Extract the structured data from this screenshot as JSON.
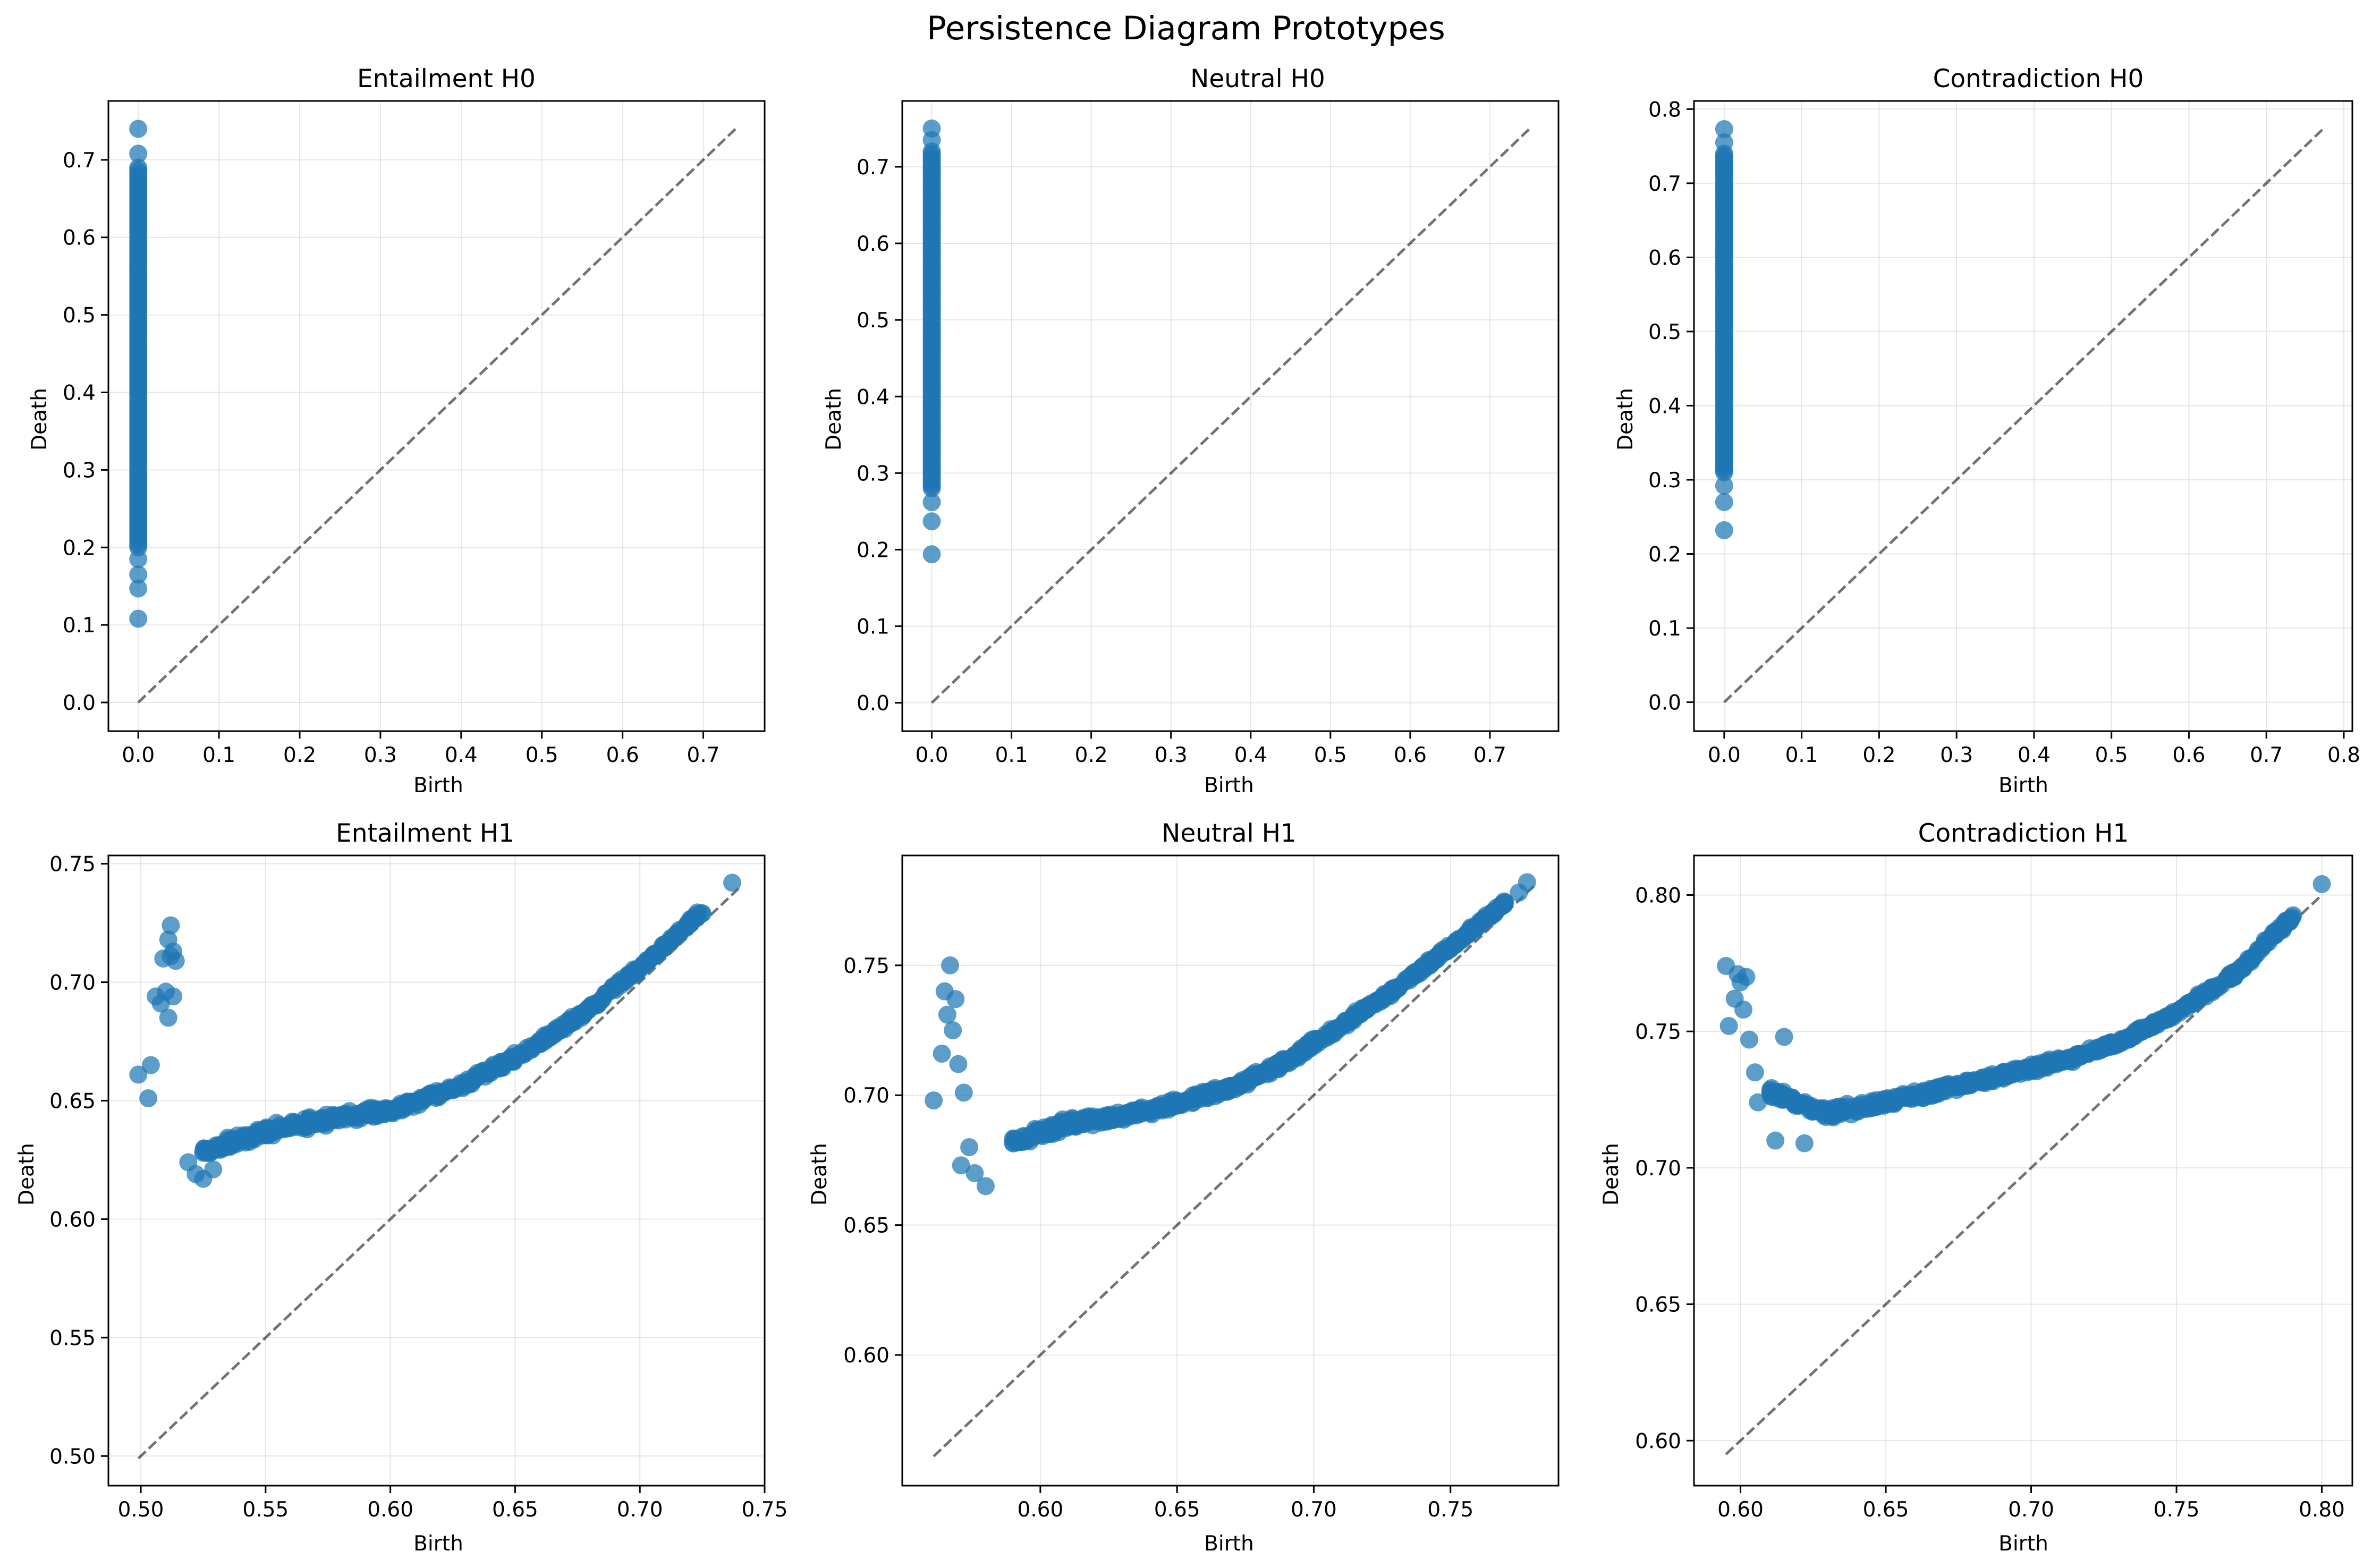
{
  "figure": {
    "suptitle": "Persistence Diagram Prototypes",
    "marker_color": "#1f77b4",
    "diagonal_color": "#000000"
  },
  "chart_data": [
    {
      "type": "scatter",
      "title": "Entailment H0",
      "xlabel": "Birth",
      "ylabel": "Death",
      "xlim": [
        -0.037,
        0.776
      ],
      "ylim": [
        -0.037,
        0.776
      ],
      "xticks": [
        0.0,
        0.1,
        0.2,
        0.3,
        0.4,
        0.5,
        0.6,
        0.7
      ],
      "xtick_labels": [
        "0.0",
        "0.1",
        "0.2",
        "0.3",
        "0.4",
        "0.5",
        "0.6",
        "0.7"
      ],
      "yticks": [
        0.0,
        0.1,
        0.2,
        0.3,
        0.4,
        0.5,
        0.6,
        0.7
      ],
      "ytick_labels": [
        "0.0",
        "0.1",
        "0.2",
        "0.3",
        "0.4",
        "0.5",
        "0.6",
        "0.7"
      ],
      "diagonal": [
        0.0,
        0.74
      ],
      "grid": true,
      "points": {
        "dense_range": {
          "x": 0.0,
          "y_from": 0.2,
          "y_to": 0.69
        },
        "outliers": [
          [
            0.0,
            0.108
          ],
          [
            0.0,
            0.147
          ],
          [
            0.0,
            0.165
          ],
          [
            0.0,
            0.185
          ],
          [
            0.0,
            0.708
          ],
          [
            0.0,
            0.74
          ]
        ]
      }
    },
    {
      "type": "scatter",
      "title": "Neutral H0",
      "xlabel": "Birth",
      "ylabel": "Death",
      "xlim": [
        -0.037,
        0.786
      ],
      "ylim": [
        -0.037,
        0.786
      ],
      "xticks": [
        0.0,
        0.1,
        0.2,
        0.3,
        0.4,
        0.5,
        0.6,
        0.7
      ],
      "xtick_labels": [
        "0.0",
        "0.1",
        "0.2",
        "0.3",
        "0.4",
        "0.5",
        "0.6",
        "0.7"
      ],
      "yticks": [
        0.0,
        0.1,
        0.2,
        0.3,
        0.4,
        0.5,
        0.6,
        0.7
      ],
      "ytick_labels": [
        "0.0",
        "0.1",
        "0.2",
        "0.3",
        "0.4",
        "0.5",
        "0.6",
        "0.7"
      ],
      "diagonal": [
        0.0,
        0.75
      ],
      "grid": true,
      "points": {
        "dense_range": {
          "x": 0.0,
          "y_from": 0.28,
          "y_to": 0.72
        },
        "outliers": [
          [
            0.0,
            0.194
          ],
          [
            0.0,
            0.237
          ],
          [
            0.0,
            0.262
          ],
          [
            0.0,
            0.735
          ],
          [
            0.0,
            0.75
          ]
        ]
      }
    },
    {
      "type": "scatter",
      "title": "Contradiction H0",
      "xlabel": "Birth",
      "ylabel": "Death",
      "xlim": [
        -0.039,
        0.811
      ],
      "ylim": [
        -0.039,
        0.811
      ],
      "xticks": [
        0.0,
        0.1,
        0.2,
        0.3,
        0.4,
        0.5,
        0.6,
        0.7,
        0.8
      ],
      "xtick_labels": [
        "0.0",
        "0.1",
        "0.2",
        "0.3",
        "0.4",
        "0.5",
        "0.6",
        "0.7",
        "0.8"
      ],
      "yticks": [
        0.0,
        0.1,
        0.2,
        0.3,
        0.4,
        0.5,
        0.6,
        0.7,
        0.8
      ],
      "ytick_labels": [
        "0.0",
        "0.1",
        "0.2",
        "0.3",
        "0.4",
        "0.5",
        "0.6",
        "0.7",
        "0.8"
      ],
      "diagonal": [
        0.0,
        0.773
      ],
      "grid": true,
      "points": {
        "dense_range": {
          "x": 0.0,
          "y_from": 0.31,
          "y_to": 0.74
        },
        "outliers": [
          [
            0.0,
            0.232
          ],
          [
            0.0,
            0.27
          ],
          [
            0.0,
            0.292
          ],
          [
            0.0,
            0.755
          ],
          [
            0.0,
            0.773
          ]
        ]
      }
    },
    {
      "type": "scatter",
      "title": "Entailment H1",
      "xlabel": "Birth",
      "ylabel": "Death",
      "xlim": [
        0.487,
        0.75
      ],
      "ylim": [
        0.4875,
        0.7535
      ],
      "xticks": [
        0.5,
        0.55,
        0.6,
        0.65,
        0.7,
        0.75
      ],
      "xtick_labels": [
        "0.50",
        "0.55",
        "0.60",
        "0.65",
        "0.70",
        "0.75"
      ],
      "yticks": [
        0.5,
        0.55,
        0.6,
        0.65,
        0.7,
        0.75
      ],
      "ytick_labels": [
        "0.50",
        "0.55",
        "0.60",
        "0.65",
        "0.70",
        "0.75"
      ],
      "diagonal": [
        0.499,
        0.74
      ],
      "grid": true,
      "points": {
        "band": [
          [
            0.525,
            0.628
          ],
          [
            0.55,
            0.637
          ],
          [
            0.575,
            0.642
          ],
          [
            0.6,
            0.646
          ],
          [
            0.625,
            0.655
          ],
          [
            0.65,
            0.668
          ],
          [
            0.675,
            0.685
          ],
          [
            0.7,
            0.706
          ],
          [
            0.725,
            0.73
          ]
        ],
        "outliers": [
          [
            0.499,
            0.661
          ],
          [
            0.503,
            0.651
          ],
          [
            0.504,
            0.665
          ],
          [
            0.506,
            0.694
          ],
          [
            0.508,
            0.691
          ],
          [
            0.509,
            0.71
          ],
          [
            0.51,
            0.696
          ],
          [
            0.511,
            0.718
          ],
          [
            0.511,
            0.685
          ],
          [
            0.512,
            0.724
          ],
          [
            0.512,
            0.711
          ],
          [
            0.513,
            0.694
          ],
          [
            0.513,
            0.713
          ],
          [
            0.514,
            0.709
          ],
          [
            0.519,
            0.624
          ],
          [
            0.522,
            0.619
          ],
          [
            0.525,
            0.617
          ],
          [
            0.529,
            0.621
          ],
          [
            0.737,
            0.742
          ]
        ]
      }
    },
    {
      "type": "scatter",
      "title": "Neutral H1",
      "xlabel": "Birth",
      "ylabel": "Death",
      "xlim": [
        0.5495,
        0.7895
      ],
      "ylim": [
        0.5497,
        0.7923
      ],
      "xticks": [
        0.6,
        0.65,
        0.7,
        0.75
      ],
      "xtick_labels": [
        "0.60",
        "0.65",
        "0.70",
        "0.75"
      ],
      "yticks": [
        0.6,
        0.65,
        0.7,
        0.75
      ],
      "ytick_labels": [
        "0.60",
        "0.65",
        "0.70",
        "0.75"
      ],
      "diagonal": [
        0.561,
        0.781
      ],
      "grid": true,
      "points": {
        "band": [
          [
            0.59,
            0.682
          ],
          [
            0.61,
            0.689
          ],
          [
            0.63,
            0.692
          ],
          [
            0.65,
            0.697
          ],
          [
            0.67,
            0.703
          ],
          [
            0.69,
            0.713
          ],
          [
            0.71,
            0.727
          ],
          [
            0.73,
            0.741
          ],
          [
            0.75,
            0.757
          ],
          [
            0.77,
            0.774
          ]
        ],
        "outliers": [
          [
            0.561,
            0.698
          ],
          [
            0.564,
            0.716
          ],
          [
            0.565,
            0.74
          ],
          [
            0.566,
            0.731
          ],
          [
            0.567,
            0.75
          ],
          [
            0.568,
            0.725
          ],
          [
            0.569,
            0.737
          ],
          [
            0.57,
            0.712
          ],
          [
            0.571,
            0.673
          ],
          [
            0.572,
            0.701
          ],
          [
            0.574,
            0.68
          ],
          [
            0.576,
            0.67
          ],
          [
            0.58,
            0.665
          ],
          [
            0.775,
            0.778
          ],
          [
            0.778,
            0.782
          ]
        ]
      }
    },
    {
      "type": "scatter",
      "title": "Contradiction H1",
      "xlabel": "Birth",
      "ylabel": "Death",
      "xlim": [
        0.584,
        0.8105
      ],
      "ylim": [
        0.5835,
        0.8145
      ],
      "xticks": [
        0.6,
        0.65,
        0.7,
        0.75,
        0.8
      ],
      "xtick_labels": [
        "0.60",
        "0.65",
        "0.70",
        "0.75",
        "0.80"
      ],
      "yticks": [
        0.6,
        0.65,
        0.7,
        0.75,
        0.8
      ],
      "ytick_labels": [
        "0.60",
        "0.65",
        "0.70",
        "0.75",
        "0.80"
      ],
      "diagonal": [
        0.595,
        0.8
      ],
      "grid": true,
      "points": {
        "band": [
          [
            0.61,
            0.728
          ],
          [
            0.63,
            0.72
          ],
          [
            0.65,
            0.724
          ],
          [
            0.67,
            0.729
          ],
          [
            0.69,
            0.734
          ],
          [
            0.71,
            0.739
          ],
          [
            0.73,
            0.746
          ],
          [
            0.75,
            0.757
          ],
          [
            0.77,
            0.771
          ],
          [
            0.79,
            0.792
          ]
        ],
        "outliers": [
          [
            0.595,
            0.774
          ],
          [
            0.596,
            0.752
          ],
          [
            0.598,
            0.762
          ],
          [
            0.599,
            0.771
          ],
          [
            0.6,
            0.768
          ],
          [
            0.601,
            0.758
          ],
          [
            0.602,
            0.77
          ],
          [
            0.603,
            0.747
          ],
          [
            0.605,
            0.735
          ],
          [
            0.606,
            0.724
          ],
          [
            0.612,
            0.71
          ],
          [
            0.615,
            0.748
          ],
          [
            0.622,
            0.709
          ],
          [
            0.8,
            0.804
          ]
        ]
      }
    }
  ]
}
